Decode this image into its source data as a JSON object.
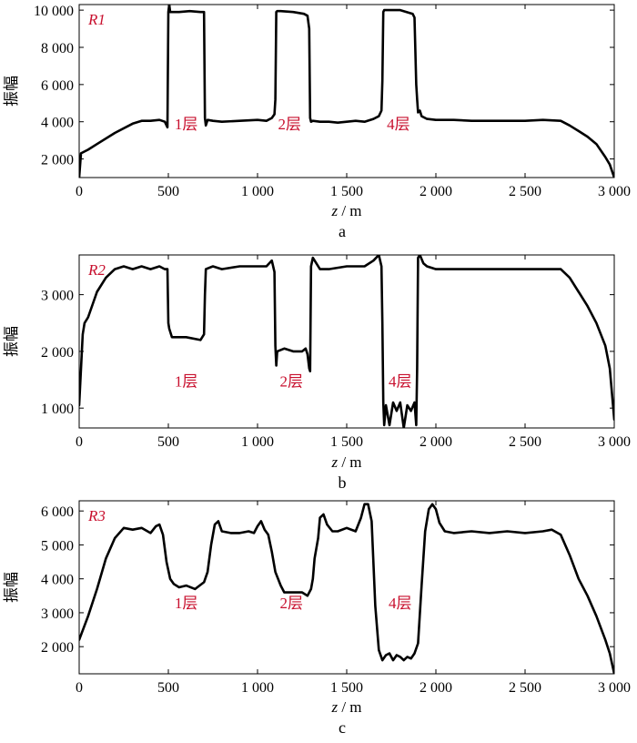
{
  "accent_color": "#c8102e",
  "chart_data": [
    {
      "type": "line",
      "panel_label": "a",
      "series_tag": "R1",
      "xlabel_italic": "z",
      "xlabel_rest": " / m",
      "ylabel": "振幅",
      "xlim": [
        0,
        3000
      ],
      "ylim": [
        1000,
        10300
      ],
      "xticks": [
        0,
        500,
        1000,
        1500,
        2000,
        2500,
        3000
      ],
      "xtick_labels": [
        "0",
        "500",
        "1 000",
        "1 500",
        "2 000",
        "2 500",
        "3 000"
      ],
      "yticks": [
        2000,
        4000,
        6000,
        8000,
        10000
      ],
      "ytick_labels": [
        "2 000",
        "4 000",
        "6 000",
        "8 000",
        "10 000"
      ],
      "annotations": [
        {
          "text": "1层",
          "x": 600,
          "y": 3900
        },
        {
          "text": "2层",
          "x": 1180,
          "y": 3900
        },
        {
          "text": "4层",
          "x": 1790,
          "y": 3900
        }
      ],
      "series": [
        {
          "x": [
            0,
            10,
            50,
            100,
            200,
            300,
            350,
            400,
            450,
            480,
            495,
            500,
            505,
            510,
            560,
            620,
            680,
            700,
            705,
            710,
            720,
            750,
            800,
            900,
            1000,
            1050,
            1080,
            1095,
            1100,
            1105,
            1110,
            1130,
            1200,
            1260,
            1280,
            1290,
            1295,
            1300,
            1310,
            1350,
            1400,
            1450,
            1500,
            1550,
            1600,
            1650,
            1680,
            1695,
            1700,
            1705,
            1710,
            1730,
            1800,
            1870,
            1880,
            1890,
            1895,
            1900,
            1910,
            1920,
            1950,
            2000,
            2100,
            2200,
            2300,
            2400,
            2500,
            2600,
            2700,
            2750,
            2800,
            2850,
            2900,
            2950,
            2975,
            3000
          ],
          "y": [
            1000,
            2300,
            2500,
            2800,
            3400,
            3900,
            4050,
            4050,
            4100,
            4000,
            3700,
            9900,
            10300,
            9900,
            9900,
            9950,
            9900,
            9900,
            4200,
            3800,
            4100,
            4050,
            4000,
            4050,
            4100,
            4050,
            4200,
            4400,
            5200,
            9900,
            9950,
            9950,
            9900,
            9800,
            9700,
            9000,
            4200,
            4000,
            4050,
            4000,
            4000,
            3950,
            4000,
            4050,
            4000,
            4150,
            4300,
            4600,
            6200,
            9900,
            10000,
            10000,
            10000,
            9800,
            9600,
            6000,
            5200,
            4500,
            4600,
            4300,
            4150,
            4100,
            4100,
            4050,
            4050,
            4050,
            4050,
            4100,
            4050,
            3800,
            3500,
            3200,
            2800,
            2100,
            1700,
            1000
          ]
        }
      ]
    },
    {
      "type": "line",
      "panel_label": "b",
      "series_tag": "R2",
      "xlabel_italic": "z",
      "xlabel_rest": " / m",
      "ylabel": "振幅",
      "xlim": [
        0,
        3000
      ],
      "ylim": [
        650,
        3700
      ],
      "xticks": [
        0,
        500,
        1000,
        1500,
        2000,
        2500,
        3000
      ],
      "xtick_labels": [
        "0",
        "500",
        "1 000",
        "1 500",
        "2 000",
        "2 500",
        "3 000"
      ],
      "yticks": [
        1000,
        2000,
        3000
      ],
      "ytick_labels": [
        "1 000",
        "2 000",
        "3 000"
      ],
      "annotations": [
        {
          "text": "1层",
          "x": 600,
          "y": 1480
        },
        {
          "text": "2层",
          "x": 1190,
          "y": 1480
        },
        {
          "text": "4层",
          "x": 1800,
          "y": 1480
        }
      ],
      "series": [
        {
          "x": [
            0,
            20,
            30,
            50,
            100,
            150,
            200,
            250,
            300,
            350,
            400,
            450,
            480,
            495,
            500,
            505,
            520,
            600,
            680,
            700,
            705,
            710,
            750,
            800,
            900,
            1000,
            1050,
            1080,
            1095,
            1100,
            1105,
            1110,
            1150,
            1200,
            1250,
            1270,
            1280,
            1290,
            1295,
            1300,
            1310,
            1350,
            1400,
            1500,
            1600,
            1650,
            1680,
            1695,
            1700,
            1705,
            1710,
            1720,
            1740,
            1760,
            1780,
            1800,
            1820,
            1840,
            1860,
            1880,
            1890,
            1895,
            1900,
            1910,
            1930,
            1950,
            2000,
            2100,
            2200,
            2300,
            2400,
            2500,
            2600,
            2700,
            2750,
            2800,
            2850,
            2900,
            2950,
            2975,
            3000
          ],
          "y": [
            1050,
            2300,
            2500,
            2600,
            3050,
            3300,
            3450,
            3500,
            3450,
            3500,
            3450,
            3500,
            3450,
            3450,
            2500,
            2400,
            2250,
            2250,
            2200,
            2300,
            3000,
            3450,
            3500,
            3450,
            3500,
            3500,
            3500,
            3600,
            3400,
            2100,
            1750,
            2000,
            2050,
            2000,
            2000,
            2050,
            1950,
            1700,
            1650,
            3500,
            3650,
            3450,
            3450,
            3500,
            3500,
            3600,
            3700,
            3500,
            2500,
            1100,
            700,
            1050,
            700,
            1100,
            950,
            1100,
            650,
            1050,
            950,
            1100,
            700,
            1700,
            3650,
            3700,
            3550,
            3500,
            3450,
            3450,
            3450,
            3450,
            3450,
            3450,
            3450,
            3450,
            3300,
            3050,
            2800,
            2500,
            2100,
            1700,
            800
          ]
        }
      ]
    },
    {
      "type": "line",
      "panel_label": "c",
      "series_tag": "R3",
      "xlabel_italic": "z",
      "xlabel_rest": " / m",
      "ylabel": "振幅",
      "xlim": [
        0,
        3000
      ],
      "ylim": [
        1200,
        6300
      ],
      "xticks": [
        0,
        500,
        1000,
        1500,
        2000,
        2500,
        3000
      ],
      "xtick_labels": [
        "0",
        "500",
        "1 000",
        "1 500",
        "2 000",
        "2 500",
        "3 000"
      ],
      "yticks": [
        2000,
        3000,
        4000,
        5000,
        6000
      ],
      "ytick_labels": [
        "2 000",
        "3 000",
        "4 000",
        "5 000",
        "6 000"
      ],
      "annotations": [
        {
          "text": "1层",
          "x": 600,
          "y": 3300
        },
        {
          "text": "2层",
          "x": 1190,
          "y": 3300
        },
        {
          "text": "4层",
          "x": 1800,
          "y": 3300
        }
      ],
      "series": [
        {
          "x": [
            0,
            50,
            100,
            150,
            200,
            250,
            300,
            350,
            400,
            430,
            450,
            470,
            490,
            510,
            530,
            560,
            600,
            650,
            700,
            720,
            740,
            760,
            780,
            800,
            850,
            900,
            950,
            980,
            1000,
            1020,
            1040,
            1060,
            1080,
            1100,
            1130,
            1150,
            1200,
            1250,
            1280,
            1300,
            1310,
            1320,
            1340,
            1350,
            1370,
            1390,
            1420,
            1450,
            1500,
            1550,
            1580,
            1600,
            1620,
            1640,
            1660,
            1680,
            1700,
            1720,
            1740,
            1760,
            1780,
            1800,
            1820,
            1840,
            1860,
            1880,
            1900,
            1920,
            1940,
            1960,
            1980,
            2000,
            2020,
            2050,
            2100,
            2200,
            2300,
            2400,
            2500,
            2600,
            2650,
            2700,
            2750,
            2800,
            2850,
            2900,
            2950,
            2975,
            3000
          ],
          "y": [
            2200,
            2900,
            3700,
            4600,
            5200,
            5500,
            5450,
            5500,
            5350,
            5550,
            5600,
            5300,
            4500,
            4000,
            3850,
            3750,
            3800,
            3700,
            3900,
            4200,
            5000,
            5600,
            5700,
            5400,
            5350,
            5350,
            5400,
            5350,
            5550,
            5700,
            5450,
            5300,
            4800,
            4200,
            3800,
            3600,
            3600,
            3600,
            3500,
            3700,
            4000,
            4600,
            5200,
            5800,
            5900,
            5600,
            5400,
            5400,
            5500,
            5400,
            5800,
            6200,
            6200,
            5700,
            3200,
            1900,
            1600,
            1750,
            1800,
            1600,
            1750,
            1700,
            1600,
            1700,
            1650,
            1800,
            2100,
            3800,
            5400,
            6050,
            6200,
            6050,
            5650,
            5400,
            5350,
            5400,
            5350,
            5400,
            5350,
            5400,
            5450,
            5300,
            4700,
            4000,
            3500,
            2900,
            2200,
            1800,
            1200
          ]
        }
      ]
    }
  ]
}
